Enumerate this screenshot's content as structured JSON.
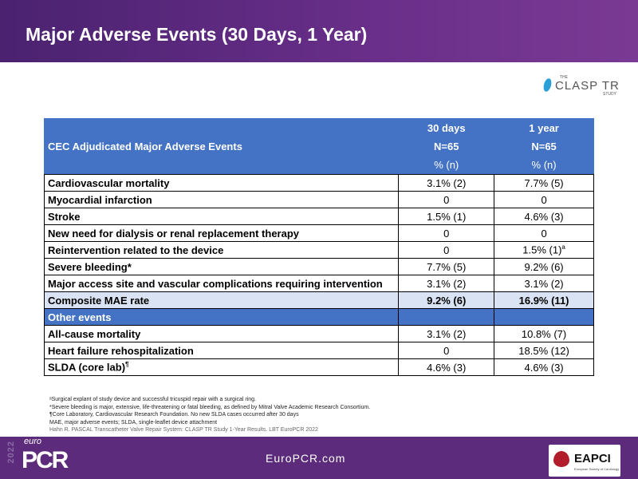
{
  "title": "Major Adverse Events (30 Days, 1 Year)",
  "logo": {
    "the": "THE",
    "name": "CLASP TR",
    "study": "STUDY"
  },
  "table": {
    "header": {
      "label": "CEC Adjudicated Major Adverse Events",
      "col1": [
        "30 days",
        "N=65",
        "% (n)"
      ],
      "col2": [
        "1 year",
        "N=65",
        "% (n)"
      ]
    },
    "rows": [
      {
        "label": "Cardiovascular mortality",
        "d30": "3.1% (2)",
        "y1": "7.7% (5)"
      },
      {
        "label": "Myocardial infarction",
        "d30": "0",
        "y1": "0"
      },
      {
        "label": "Stroke",
        "d30": "1.5% (1)",
        "y1": "4.6% (3)"
      },
      {
        "label": "New need for dialysis or renal replacement therapy",
        "d30": "0",
        "y1": "0"
      },
      {
        "label": "Reintervention related to the device",
        "d30": "0",
        "y1": "1.5% (1)",
        "y1_sup": "a"
      },
      {
        "label": "Severe bleeding*",
        "d30": "7.7% (5)",
        "y1": "9.2% (6)"
      },
      {
        "label": "Major access site and vascular complications requiring intervention",
        "d30": "3.1% (2)",
        "y1": "3.1% (2)"
      }
    ],
    "composite": {
      "label": "Composite MAE rate",
      "d30": "9.2% (6)",
      "y1": "16.9% (11)"
    },
    "other_label": "Other events",
    "other_rows": [
      {
        "label": "All-cause mortality",
        "d30": "3.1% (2)",
        "y1": "10.8% (7)"
      },
      {
        "label": "Heart failure rehospitalization",
        "d30": "0",
        "y1": "18.5% (12)"
      },
      {
        "label": "SLDA (core lab)",
        "label_sup": "¶",
        "d30": "4.6% (3)",
        "y1": "4.6% (3)"
      }
    ]
  },
  "notes": [
    "ᵃSurgical explant of study device and successful tricuspid repair with a surgical ring.",
    "*Severe bleeding is major, extensive, life-threatening or fatal bleeding, as defined by Mitral Valve Academic Research Consortium.",
    "¶Core Laboratory, Cardiovascular Research Foundation. No new SLDA cases occurred after 30 days",
    "MAE, major adverse events; SLDA, single-leaflet device attachment"
  ],
  "citation": "Hahn R. PASCAL Transcatheter Valve Repair System: CLASP TR Study 1-Year Results. LBT EuroPCR 2022",
  "footer": {
    "year": "2022",
    "euro": "euro",
    "pcr": "PCR",
    "site": "EuroPCR.com",
    "eapci": "EAPCI",
    "esc": "European Society of Cardiology"
  }
}
